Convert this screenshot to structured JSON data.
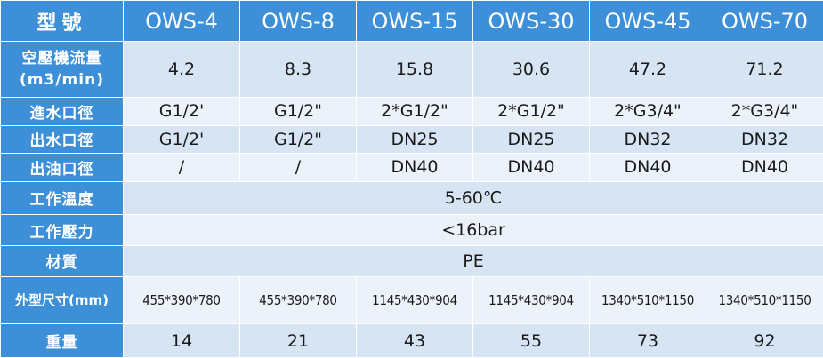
{
  "header": {
    "label": "型號",
    "models": [
      "OWS-4",
      "OWS-8",
      "OWS-15",
      "OWS-30",
      "OWS-45",
      "OWS-70"
    ]
  },
  "rows": {
    "flow": {
      "label_line1": "空壓機流量",
      "label_line2": "(m3/min)",
      "values": [
        "4.2",
        "8.3",
        "15.8",
        "30.6",
        "47.2",
        "71.2"
      ]
    },
    "inlet": {
      "label": "進水口徑",
      "values": [
        "G1/2'",
        "G1/2\"",
        "2*G1/2\"",
        "2*G1/2\"",
        "2*G3/4\"",
        "2*G3/4\""
      ]
    },
    "outlet": {
      "label": "出水口徑",
      "values": [
        "G1/2'",
        "G1/2\"",
        "DN25",
        "DN25",
        "DN32",
        "DN32"
      ]
    },
    "oil_outlet": {
      "label": "出油口徑",
      "values": [
        "/",
        "/",
        "DN40",
        "DN40",
        "DN40",
        "DN40"
      ]
    },
    "temperature": {
      "label": "工作溫度",
      "value": "5-60℃"
    },
    "pressure": {
      "label": "工作壓力",
      "value": "<16bar"
    },
    "material": {
      "label": "材質",
      "value": "PE"
    },
    "dimensions": {
      "label": "外型尺寸(mm)",
      "values": [
        "455*390*780",
        "455*390*780",
        "1145*430*904",
        "1145*430*904",
        "1340*510*1150",
        "1340*510*1150"
      ]
    },
    "weight": {
      "label": "重量",
      "values": [
        "14",
        "21",
        "43",
        "55",
        "73",
        "92"
      ]
    }
  },
  "colors": {
    "header_blue": "#3d8fd8",
    "row_dark": "#d6e4f3",
    "row_light": "#ecf2f9"
  }
}
